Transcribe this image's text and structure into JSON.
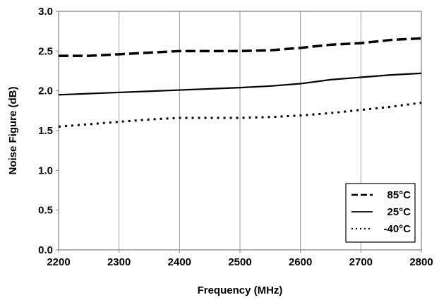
{
  "chart_data": {
    "type": "line",
    "title": "",
    "xlabel": "Frequency (MHz)",
    "ylabel": "Noise Figure (dB)",
    "xlim": [
      2200,
      2800
    ],
    "ylim": [
      0.0,
      3.0
    ],
    "x_ticks": [
      "2200",
      "2300",
      "2400",
      "2500",
      "2600",
      "2700",
      "2800"
    ],
    "y_ticks": [
      "0.0",
      "0.5",
      "1.0",
      "1.5",
      "2.0",
      "2.5",
      "3.0"
    ],
    "grid": "vertical",
    "legend": "bottom-right",
    "series": [
      {
        "name": "85°C",
        "style": "dashed",
        "x": [
          2200,
          2250,
          2300,
          2350,
          2400,
          2450,
          2500,
          2550,
          2600,
          2650,
          2700,
          2750,
          2800
        ],
        "y": [
          2.44,
          2.44,
          2.46,
          2.48,
          2.5,
          2.5,
          2.5,
          2.51,
          2.54,
          2.58,
          2.6,
          2.64,
          2.66
        ]
      },
      {
        "name": "25°C",
        "style": "solid",
        "x": [
          2200,
          2250,
          2300,
          2350,
          2400,
          2450,
          2500,
          2550,
          2600,
          2650,
          2700,
          2750,
          2800
        ],
        "y": [
          1.95,
          1.965,
          1.98,
          1.995,
          2.01,
          2.025,
          2.04,
          2.06,
          2.09,
          2.14,
          2.17,
          2.2,
          2.22
        ]
      },
      {
        "name": "-40°C",
        "style": "dotted",
        "x": [
          2200,
          2250,
          2300,
          2350,
          2400,
          2450,
          2500,
          2550,
          2600,
          2650,
          2700,
          2750,
          2800
        ],
        "y": [
          1.55,
          1.58,
          1.61,
          1.64,
          1.66,
          1.66,
          1.66,
          1.67,
          1.69,
          1.72,
          1.76,
          1.8,
          1.85
        ]
      }
    ]
  }
}
